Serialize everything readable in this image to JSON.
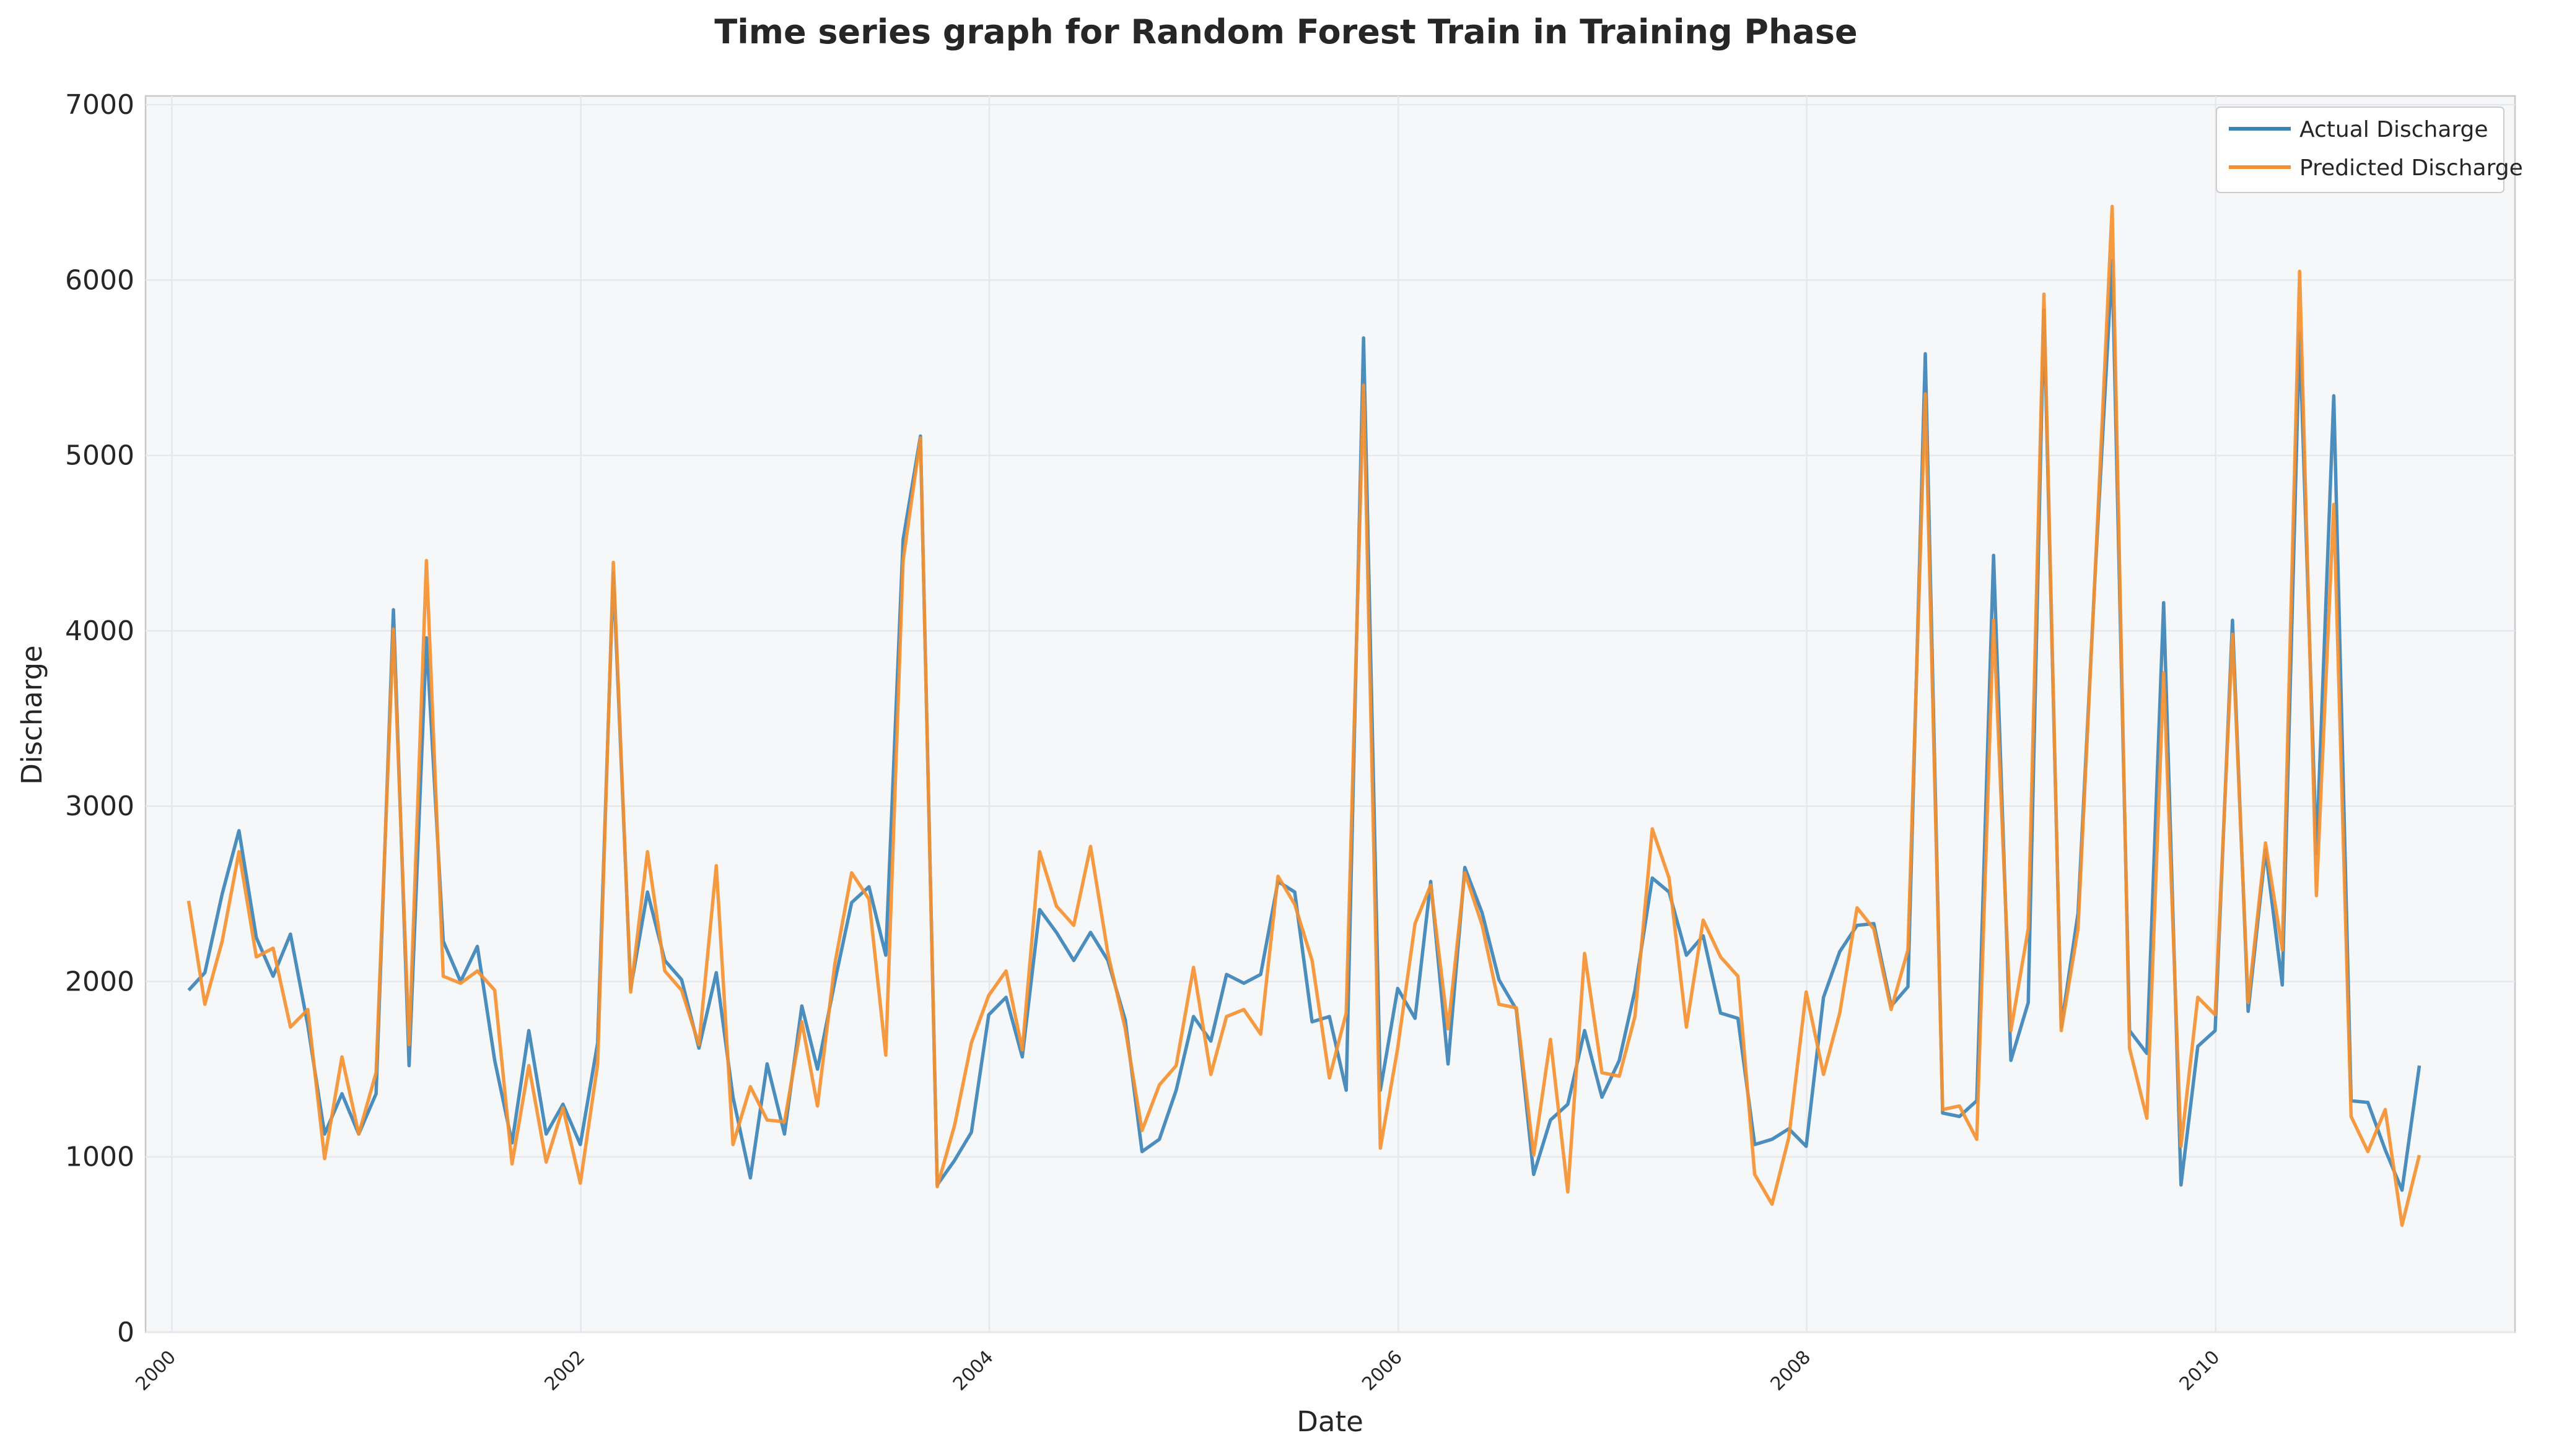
{
  "colors": {
    "actual": "#3c84b8",
    "predicted": "#f59132",
    "plot_background": "#f6f7f9",
    "grid": "#e6e8ec"
  },
  "chart_data": {
    "type": "line",
    "title": "Time series graph for Random Forest Train in Training Phase",
    "xlabel": "Date",
    "ylabel": "Discharge",
    "x_type": "date",
    "xlim": [
      "1999-11-15",
      "2011-06-20"
    ],
    "ylim": [
      0,
      7050
    ],
    "yticks": [
      0,
      1000,
      2000,
      3000,
      4000,
      5000,
      6000,
      7000
    ],
    "xticks": [
      "2000",
      "2002",
      "2004",
      "2006",
      "2008",
      "2010"
    ],
    "xtick_dates": [
      "2000-01-01",
      "2002-01-01",
      "2004-01-01",
      "2006-01-01",
      "2008-01-01",
      "2010-01-01"
    ],
    "grid": true,
    "legend_position": "top-right",
    "x": [
      "2000-01-31",
      "2000-02-29",
      "2000-03-31",
      "2000-04-30",
      "2000-05-31",
      "2000-06-30",
      "2000-07-31",
      "2000-08-31",
      "2000-09-30",
      "2000-10-31",
      "2000-11-30",
      "2000-12-31",
      "2001-01-31",
      "2001-02-28",
      "2001-03-31",
      "2001-04-30",
      "2001-05-31",
      "2001-06-30",
      "2001-07-31",
      "2001-08-31",
      "2001-09-30",
      "2001-10-31",
      "2001-11-30",
      "2001-12-31",
      "2002-01-31",
      "2002-02-28",
      "2002-03-31",
      "2002-04-30",
      "2002-05-31",
      "2002-06-30",
      "2002-07-31",
      "2002-08-31",
      "2002-09-30",
      "2002-10-31",
      "2002-11-30",
      "2002-12-31",
      "2003-01-31",
      "2003-02-28",
      "2003-03-31",
      "2003-04-30",
      "2003-05-31",
      "2003-06-30",
      "2003-07-31",
      "2003-08-31",
      "2003-09-30",
      "2003-10-31",
      "2003-11-30",
      "2003-12-31",
      "2004-01-31",
      "2004-02-29",
      "2004-03-31",
      "2004-04-30",
      "2004-05-31",
      "2004-06-30",
      "2004-07-31",
      "2004-08-31",
      "2004-09-30",
      "2004-10-31",
      "2004-11-30",
      "2004-12-31",
      "2005-01-31",
      "2005-02-28",
      "2005-03-31",
      "2005-04-30",
      "2005-05-31",
      "2005-06-30",
      "2005-07-31",
      "2005-08-31",
      "2005-09-30",
      "2005-10-31",
      "2005-11-30",
      "2005-12-31",
      "2006-01-31",
      "2006-02-28",
      "2006-03-31",
      "2006-04-30",
      "2006-05-31",
      "2006-06-30",
      "2006-07-31",
      "2006-08-31",
      "2006-09-30",
      "2006-10-31",
      "2006-11-30",
      "2006-12-31",
      "2007-01-31",
      "2007-02-28",
      "2007-03-31",
      "2007-04-30",
      "2007-05-31",
      "2007-06-30",
      "2007-07-31",
      "2007-08-31",
      "2007-09-30",
      "2007-10-31",
      "2007-11-30",
      "2007-12-31",
      "2008-01-31",
      "2008-02-29",
      "2008-03-31",
      "2008-04-30",
      "2008-05-31",
      "2008-06-30",
      "2008-07-31",
      "2008-08-31",
      "2008-09-30",
      "2008-10-31",
      "2008-11-30",
      "2008-12-31",
      "2009-01-31",
      "2009-02-28",
      "2009-03-31",
      "2009-04-30",
      "2009-05-31",
      "2009-06-30",
      "2009-07-31",
      "2009-08-31",
      "2009-09-30",
      "2009-10-31",
      "2009-11-30",
      "2009-12-31",
      "2010-01-31",
      "2010-02-28",
      "2010-03-31",
      "2010-04-30",
      "2010-05-31",
      "2010-06-30",
      "2010-07-31",
      "2010-08-31",
      "2010-09-30",
      "2010-10-31",
      "2010-11-30",
      "2010-12-31"
    ],
    "series": [
      {
        "name": "Actual Discharge",
        "color": "#3c84b8",
        "values": [
          1950,
          2050,
          2500,
          2860,
          2250,
          2030,
          2270,
          1750,
          1130,
          1360,
          1130,
          1360,
          4120,
          1520,
          3960,
          2230,
          2000,
          2200,
          1550,
          1080,
          1720,
          1130,
          1300,
          1070,
          1650,
          4330,
          1960,
          2510,
          2120,
          2010,
          1620,
          2050,
          1340,
          880,
          1530,
          1130,
          1860,
          1500,
          2000,
          2450,
          2540,
          2150,
          4520,
          5110,
          840,
          980,
          1140,
          1810,
          1910,
          1570,
          2410,
          2280,
          2120,
          2280,
          2120,
          1780,
          1030,
          1100,
          1380,
          1800,
          1660,
          2040,
          1990,
          2040,
          2570,
          2510,
          1770,
          1800,
          1380,
          5670,
          1380,
          1960,
          1790,
          2570,
          1530,
          2650,
          2390,
          2010,
          1840,
          900,
          1210,
          1300,
          1720,
          1340,
          1550,
          1950,
          2590,
          2510,
          2150,
          2260,
          1820,
          1790,
          1070,
          1100,
          1160,
          1060,
          1910,
          2170,
          2320,
          2330,
          1860,
          1970,
          5580,
          1250,
          1230,
          1320,
          4430,
          1550,
          1880,
          5830,
          1740,
          2390,
          4350,
          6110,
          1720,
          1590,
          4160,
          840,
          1630,
          1720,
          4060,
          1830,
          2750,
          1980,
          5700,
          2730,
          5340,
          1320,
          1310,
          1040,
          810,
          1520
        ]
      },
      {
        "name": "Predicted Discharge",
        "color": "#f59132",
        "values": [
          2460,
          1870,
          2230,
          2740,
          2140,
          2190,
          1740,
          1840,
          990,
          1570,
          1130,
          1480,
          4010,
          1640,
          4400,
          2030,
          1990,
          2060,
          1950,
          960,
          1520,
          970,
          1280,
          850,
          1530,
          4390,
          1940,
          2740,
          2060,
          1950,
          1640,
          2660,
          1070,
          1400,
          1210,
          1200,
          1770,
          1290,
          2100,
          2620,
          2470,
          1580,
          4400,
          5100,
          830,
          1180,
          1650,
          1920,
          2060,
          1610,
          2740,
          2430,
          2320,
          2770,
          2160,
          1730,
          1150,
          1410,
          1520,
          2080,
          1470,
          1800,
          1840,
          1700,
          2600,
          2440,
          2120,
          1450,
          1820,
          5400,
          1050,
          1620,
          2330,
          2550,
          1730,
          2620,
          2320,
          1870,
          1850,
          1010,
          1670,
          800,
          2160,
          1480,
          1460,
          1800,
          2870,
          2590,
          1740,
          2350,
          2140,
          2030,
          900,
          730,
          1110,
          1940,
          1470,
          1820,
          2420,
          2300,
          1840,
          2180,
          5350,
          1270,
          1290,
          1100,
          4060,
          1720,
          2300,
          5920,
          1720,
          2300,
          4360,
          6420,
          1620,
          1220,
          3760,
          1060,
          1910,
          1810,
          3980,
          1880,
          2790,
          2180,
          6050,
          2490,
          4720,
          1230,
          1030,
          1270,
          610,
          1010
        ]
      }
    ]
  }
}
